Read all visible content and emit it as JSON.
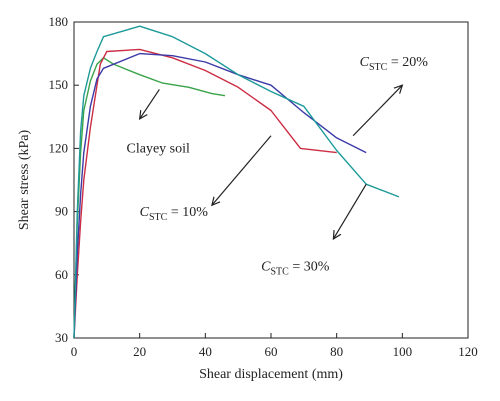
{
  "chart_data": {
    "type": "line",
    "xlabel": "Shear displacement (mm)",
    "ylabel": "Shear stress (kPa)",
    "xlim": [
      0,
      120
    ],
    "ylim": [
      30,
      180
    ],
    "xticks": [
      0,
      20,
      40,
      60,
      80,
      100,
      120
    ],
    "yticks": [
      30,
      60,
      90,
      120,
      150,
      180
    ],
    "grid": false,
    "legend": "none",
    "series": [
      {
        "key": "clayey",
        "color": "#3aa34a",
        "points": [
          [
            0,
            30
          ],
          [
            1,
            85
          ],
          [
            2,
            118
          ],
          [
            3,
            138
          ],
          [
            5,
            152
          ],
          [
            7,
            160
          ],
          [
            9,
            163
          ],
          [
            12,
            160
          ],
          [
            20,
            155
          ],
          [
            27,
            151
          ],
          [
            35,
            149
          ],
          [
            42,
            146
          ],
          [
            46,
            145
          ]
        ]
      },
      {
        "key": "stc10",
        "color": "#cc2d43",
        "points": [
          [
            0,
            30
          ],
          [
            1,
            60
          ],
          [
            2,
            85
          ],
          [
            3,
            105
          ],
          [
            5,
            130
          ],
          [
            7,
            150
          ],
          [
            8,
            160
          ],
          [
            10,
            166
          ],
          [
            20,
            167
          ],
          [
            30,
            163
          ],
          [
            40,
            157
          ],
          [
            50,
            149
          ],
          [
            60,
            138
          ],
          [
            69,
            120
          ],
          [
            80,
            118
          ]
        ]
      },
      {
        "key": "stc20",
        "color": "#3b3aa8",
        "points": [
          [
            0,
            30
          ],
          [
            1,
            70
          ],
          [
            2,
            98
          ],
          [
            3,
            118
          ],
          [
            5,
            140
          ],
          [
            7,
            153
          ],
          [
            9,
            158
          ],
          [
            20,
            165
          ],
          [
            30,
            164
          ],
          [
            40,
            161
          ],
          [
            50,
            155
          ],
          [
            60,
            150
          ],
          [
            70,
            137
          ],
          [
            80,
            125
          ],
          [
            89,
            118
          ]
        ]
      },
      {
        "key": "stc30",
        "color": "#1e9a9a",
        "points": [
          [
            0,
            30
          ],
          [
            1,
            90
          ],
          [
            2,
            128
          ],
          [
            3,
            145
          ],
          [
            5,
            158
          ],
          [
            7,
            166
          ],
          [
            9,
            173
          ],
          [
            20,
            178
          ],
          [
            30,
            173
          ],
          [
            40,
            165
          ],
          [
            50,
            155
          ],
          [
            60,
            147
          ],
          [
            70,
            140
          ],
          [
            80,
            119
          ],
          [
            89,
            103
          ],
          [
            99,
            97
          ]
        ]
      }
    ],
    "annotations": [
      {
        "key": "clayey",
        "text": "Clayey soil",
        "sub": "",
        "suffix": "",
        "label_at": [
          16,
          118
        ],
        "arrow_from": [
          26,
          148
        ],
        "arrow_to": [
          20,
          134
        ]
      },
      {
        "key": "stc10",
        "text": "C",
        "sub": "STC",
        "suffix": " = 10%",
        "label_at": [
          20,
          88
        ],
        "arrow_from": [
          60,
          126
        ],
        "arrow_to": [
          42,
          93
        ]
      },
      {
        "key": "stc20",
        "text": "C",
        "sub": "STC",
        "suffix": " = 20%",
        "label_at": [
          87,
          159
        ],
        "arrow_from": [
          85,
          126
        ],
        "arrow_to": [
          100,
          150
        ]
      },
      {
        "key": "stc30",
        "text": "C",
        "sub": "STC",
        "suffix": " = 30%",
        "label_at": [
          57,
          62
        ],
        "arrow_from": [
          89,
          103
        ],
        "arrow_to": [
          79,
          77
        ]
      }
    ]
  }
}
